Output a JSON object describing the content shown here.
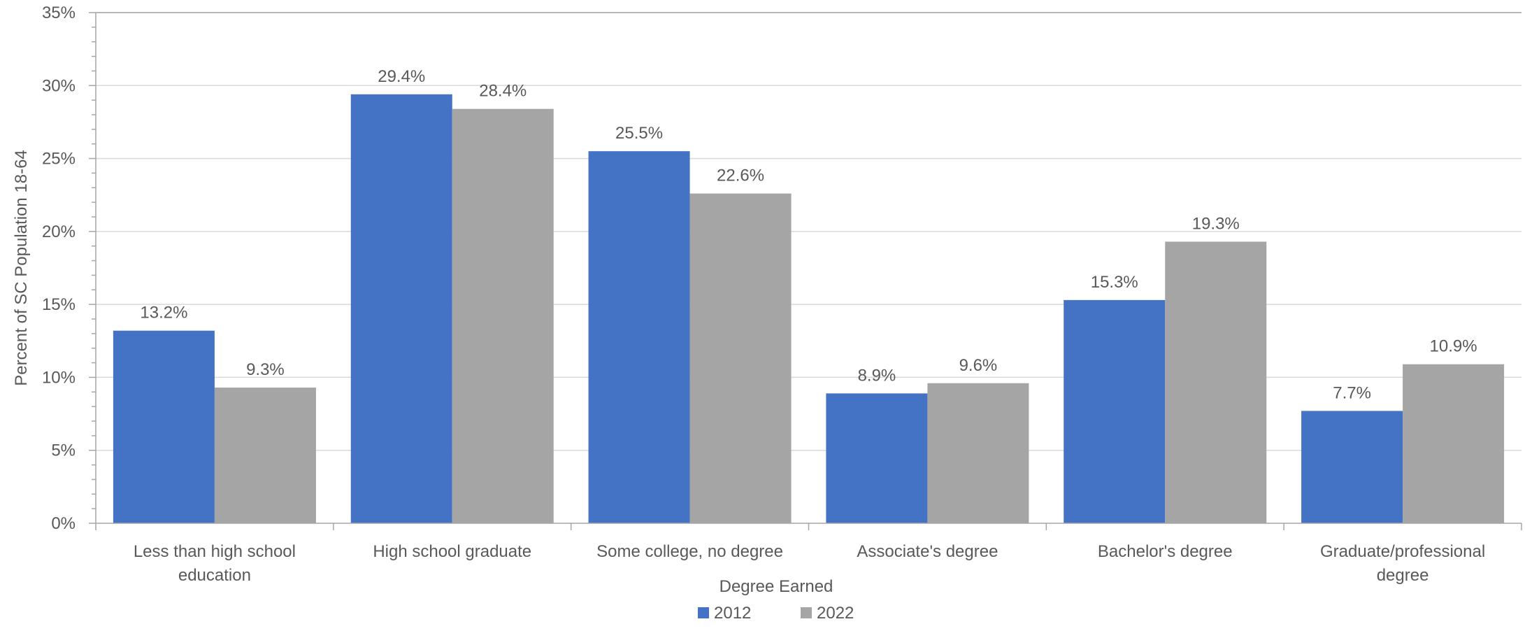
{
  "chart_data": {
    "type": "bar",
    "title": "",
    "xlabel": "Degree Earned",
    "ylabel": "Percent of SC Population 18-64",
    "ylim": [
      0,
      35
    ],
    "yticks": [
      0,
      5,
      10,
      15,
      20,
      25,
      30,
      35
    ],
    "ytick_labels": [
      "0%",
      "5%",
      "10%",
      "15%",
      "20%",
      "25%",
      "30%",
      "35%"
    ],
    "categories": [
      [
        "Less than high school",
        "education"
      ],
      [
        "High school graduate"
      ],
      [
        "Some college, no degree"
      ],
      [
        "Associate's degree"
      ],
      [
        "Bachelor's degree"
      ],
      [
        "Graduate/professional",
        "degree"
      ]
    ],
    "series": [
      {
        "name": "2012",
        "color": "#4472C4",
        "values": [
          13.2,
          29.4,
          25.5,
          8.9,
          15.3,
          7.7
        ],
        "labels": [
          "13.2%",
          "29.4%",
          "25.5%",
          "8.9%",
          "15.3%",
          "7.7%"
        ]
      },
      {
        "name": "2022",
        "color": "#A5A5A5",
        "values": [
          9.3,
          28.4,
          22.6,
          9.6,
          19.3,
          10.9
        ],
        "labels": [
          "9.3%",
          "28.4%",
          "22.6%",
          "9.6%",
          "19.3%",
          "10.9%"
        ]
      }
    ],
    "grid": true,
    "legend": "bottom-center",
    "data_labels": true
  }
}
